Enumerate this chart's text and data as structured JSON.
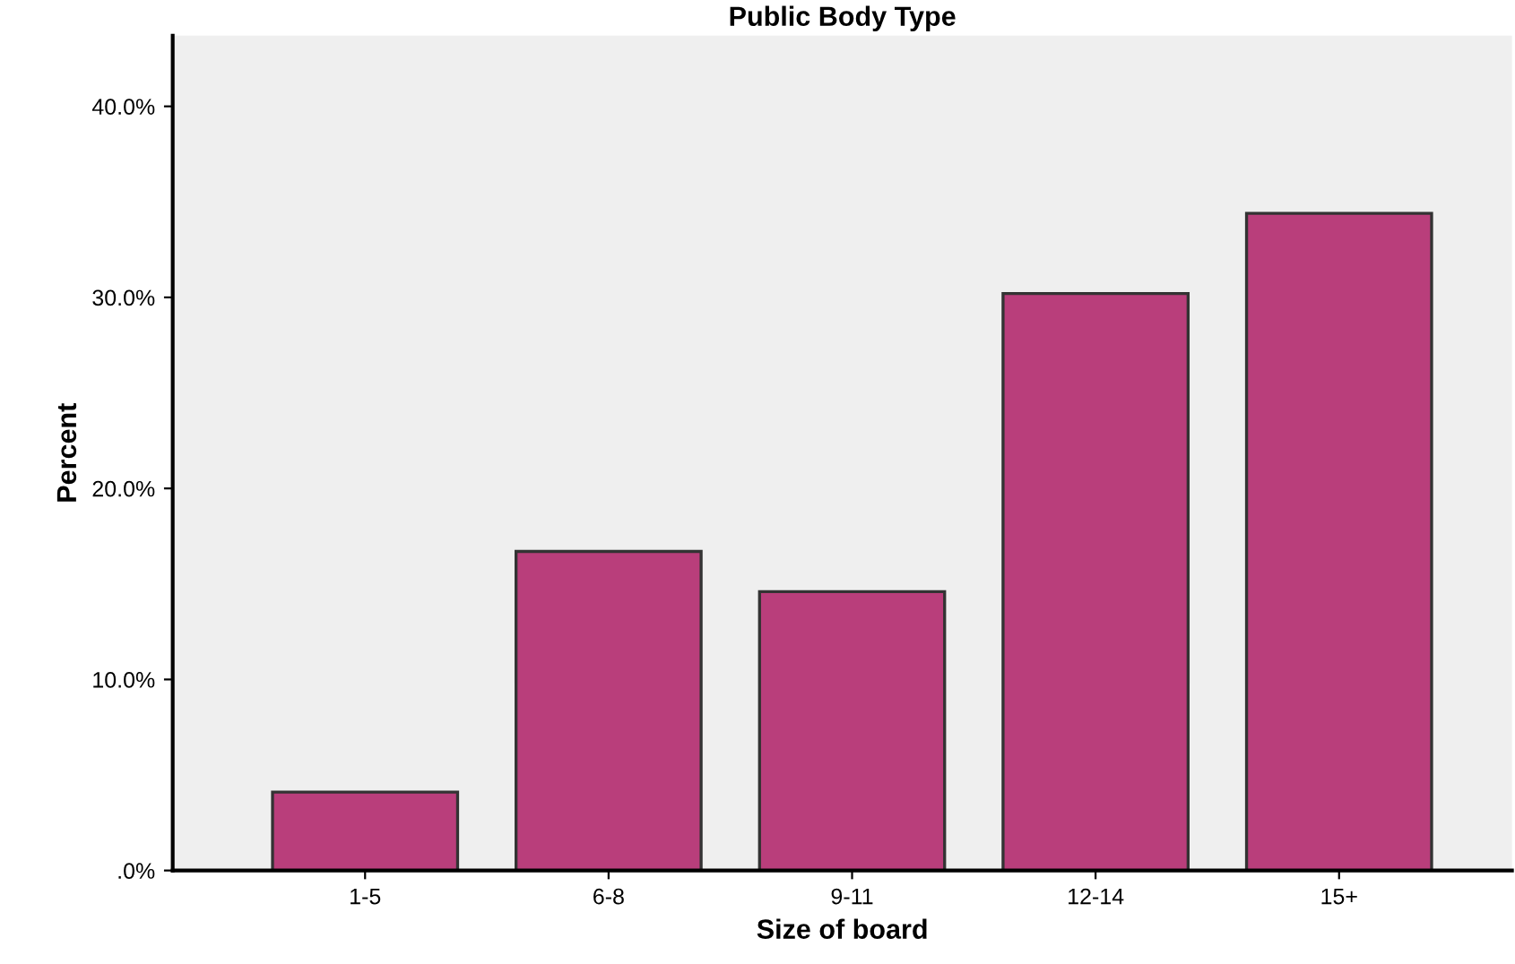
{
  "chart_data": {
    "type": "bar",
    "title": "Public Body Type",
    "xlabel": "Size of board",
    "ylabel": "Percent",
    "categories": [
      "1-5",
      "6-8",
      "9-11",
      "12-14",
      "15+"
    ],
    "values": [
      4.1,
      16.7,
      14.6,
      30.2,
      34.4
    ],
    "color": "#b93e7b",
    "ylim": [
      0,
      43.7
    ],
    "yticks": [
      {
        "value": 0,
        "label": ".0%"
      },
      {
        "value": 10,
        "label": "10.0%"
      },
      {
        "value": 20,
        "label": "20.0%"
      },
      {
        "value": 30,
        "label": "30.0%"
      },
      {
        "value": 40,
        "label": "40.0%"
      }
    ],
    "grid": false
  }
}
